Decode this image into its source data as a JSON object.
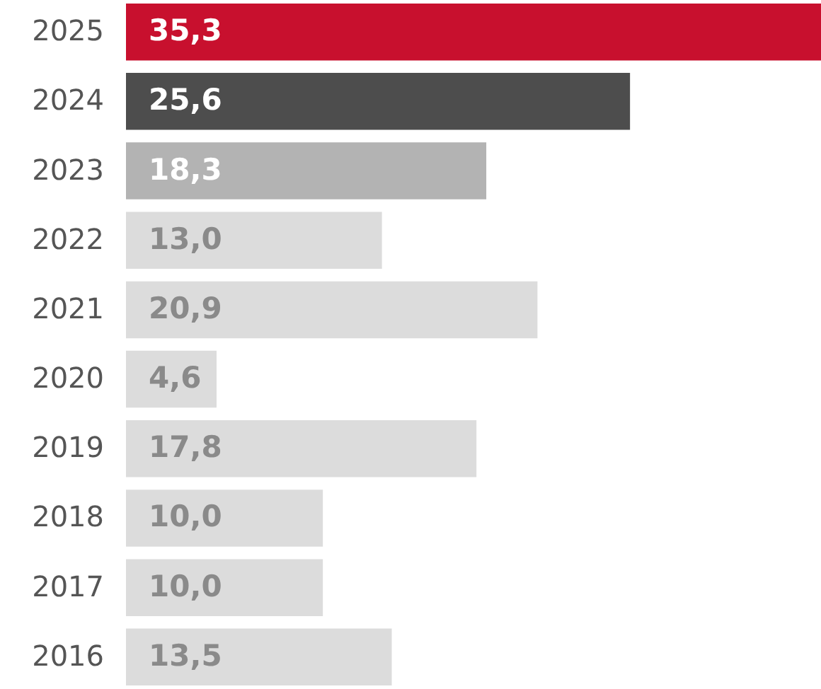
{
  "chart_data": {
    "type": "bar",
    "orientation": "horizontal",
    "categories": [
      "2025",
      "2024",
      "2023",
      "2022",
      "2021",
      "2020",
      "2019",
      "2018",
      "2017",
      "2016"
    ],
    "values": [
      35.3,
      25.6,
      18.3,
      13.0,
      20.9,
      4.6,
      17.8,
      10.0,
      10.0,
      13.5
    ],
    "value_labels": [
      "35,3",
      "25,6",
      "18,3",
      "13,0",
      "20,9",
      "4,6",
      "17,8",
      "10,0",
      "10,0",
      "13,5"
    ],
    "colors": [
      "#c8102e",
      "#4d4d4d",
      "#b3b3b3",
      "#dcdcdc",
      "#dcdcdc",
      "#dcdcdc",
      "#dcdcdc",
      "#dcdcdc",
      "#dcdcdc",
      "#dcdcdc"
    ],
    "grid": false
  }
}
